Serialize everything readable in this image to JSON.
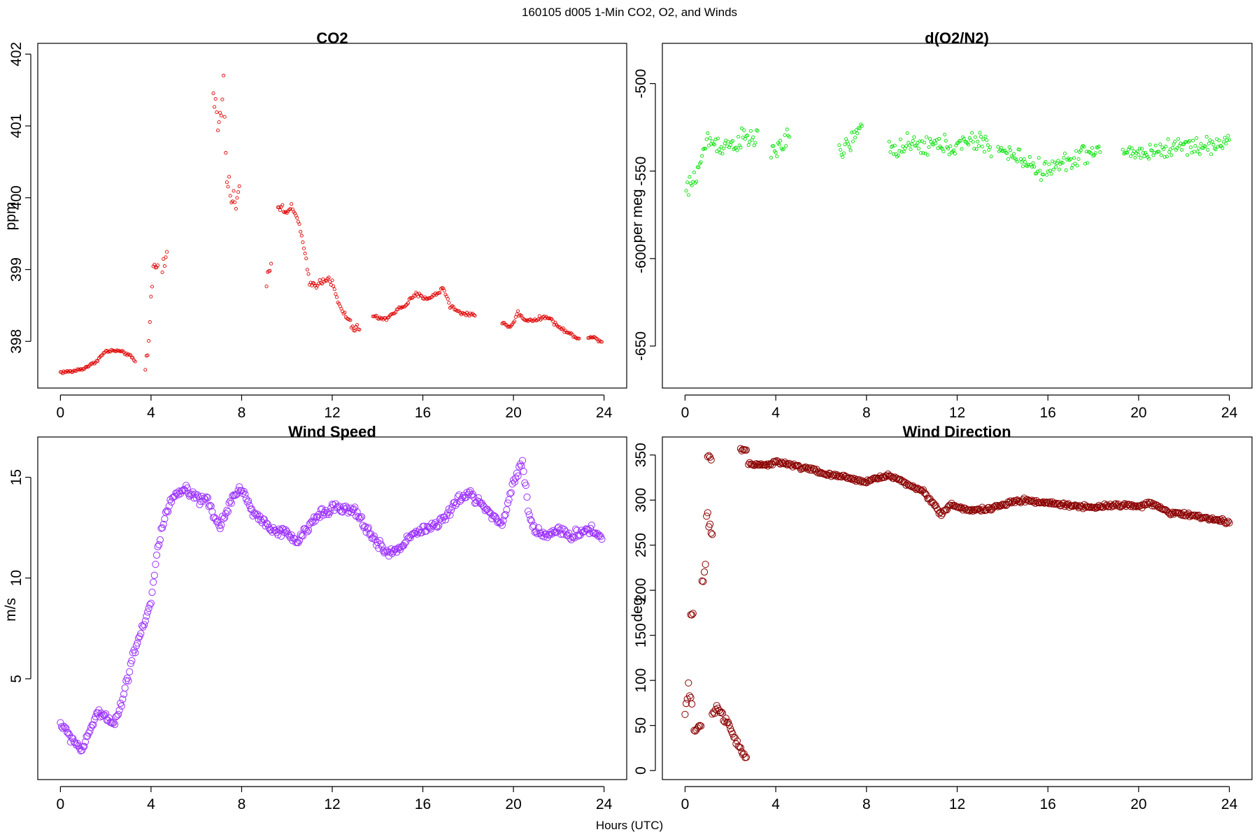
{
  "figure": {
    "suptitle": "160105   d005   1-Min CO2, O2, and Winds",
    "xlabel": "Hours (UTC)"
  },
  "chart_data": [
    {
      "type": "scatter",
      "title": "CO2",
      "xlabel": "",
      "ylabel": "ppm",
      "color": "#e00000",
      "marker_size": "small",
      "xlim": [
        -1,
        25
      ],
      "ylim": [
        397.35,
        402.15
      ],
      "xticks": [
        0,
        4,
        8,
        12,
        16,
        20,
        24
      ],
      "yticks": [
        398,
        399,
        400,
        401,
        402
      ],
      "segments": [
        {
          "x": [
            0,
            0.5,
            1.0,
            1.5,
            2.0,
            2.5,
            3.0,
            3.3
          ],
          "y": [
            397.57,
            397.58,
            397.62,
            397.7,
            397.86,
            397.87,
            397.82,
            397.72
          ],
          "jitter": 0.03
        },
        {
          "x": [
            3.75,
            3.9,
            4.0,
            4.1,
            4.3
          ],
          "y": [
            397.6,
            398.0,
            398.6,
            399.0,
            399.15
          ],
          "jitter": 0.15
        },
        {
          "x": [
            4.5,
            4.7
          ],
          "y": [
            399.0,
            399.2
          ],
          "jitter": 0.2
        },
        {
          "x": [
            6.75,
            7.0,
            7.2,
            7.4,
            7.6,
            7.9
          ],
          "y": [
            401.4,
            401.0,
            401.5,
            400.2,
            399.9,
            400.1
          ],
          "jitter": 0.35
        },
        {
          "x": [
            9.1,
            9.3
          ],
          "y": [
            398.9,
            399.1
          ],
          "jitter": 0.15
        },
        {
          "x": [
            9.6,
            9.9,
            10.2,
            10.5,
            10.8,
            11.0,
            11.4,
            11.8,
            12.0,
            12.3,
            12.7,
            13.0,
            13.2
          ],
          "y": [
            399.9,
            399.8,
            399.85,
            399.7,
            399.2,
            398.8,
            398.8,
            398.9,
            398.8,
            398.5,
            398.3,
            398.15,
            398.2
          ],
          "jitter": 0.08
        },
        {
          "x": [
            13.8,
            14.3,
            14.7,
            15.2,
            15.7,
            16.2,
            16.6,
            16.9,
            17.2,
            17.6,
            18.0,
            18.3
          ],
          "y": [
            398.35,
            398.3,
            398.4,
            398.5,
            398.65,
            398.6,
            398.65,
            398.75,
            398.5,
            398.4,
            398.38,
            398.38
          ],
          "jitter": 0.05
        },
        {
          "x": [
            19.5,
            19.9,
            20.2,
            20.5,
            21.0,
            21.5,
            22.0,
            22.5,
            22.9
          ],
          "y": [
            398.25,
            398.2,
            398.4,
            398.3,
            398.3,
            398.35,
            398.2,
            398.1,
            398.05
          ],
          "jitter": 0.04
        },
        {
          "x": [
            23.3,
            23.6,
            23.9
          ],
          "y": [
            398.05,
            398.05,
            398.0
          ],
          "jitter": 0.03
        }
      ]
    },
    {
      "type": "scatter",
      "title": "d(O2/N2)",
      "xlabel": "",
      "ylabel": "per meg",
      "color": "#00e000",
      "marker_size": "small",
      "xlim": [
        -1,
        25
      ],
      "ylim": [
        -674,
        -477
      ],
      "xticks": [
        0,
        4,
        8,
        12,
        16,
        20,
        24
      ],
      "yticks": [
        -650,
        -600,
        -550,
        -500
      ],
      "segments": [
        {
          "x": [
            0.05,
            0.3,
            0.6,
            0.8,
            1.0,
            1.5,
            2.0,
            2.5,
            3.0,
            3.2
          ],
          "y": [
            -562,
            -557,
            -548,
            -540,
            -532,
            -535,
            -535,
            -532,
            -532,
            -530
          ],
          "jitter": 9
        },
        {
          "x": [
            3.8,
            4.2,
            4.6
          ],
          "y": [
            -540,
            -535,
            -532
          ],
          "jitter": 9
        },
        {
          "x": [
            6.8,
            7.2,
            7.5,
            7.8
          ],
          "y": [
            -540,
            -535,
            -530,
            -525
          ],
          "jitter": 8
        },
        {
          "x": [
            9.0,
            10.0,
            11.0,
            12.0,
            12.8,
            13.5
          ],
          "y": [
            -537,
            -536,
            -535,
            -536,
            -533,
            -535
          ],
          "jitter": 9
        },
        {
          "x": [
            13.8,
            14.8,
            15.8,
            16.8,
            17.5,
            18.3
          ],
          "y": [
            -538,
            -543,
            -550,
            -545,
            -540,
            -540
          ],
          "jitter": 8
        },
        {
          "x": [
            19.3,
            20.0,
            21.0,
            22.0,
            23.0,
            24.0
          ],
          "y": [
            -538,
            -540,
            -538,
            -535,
            -536,
            -533
          ],
          "jitter": 8
        }
      ]
    },
    {
      "type": "scatter",
      "title": "Wind Speed",
      "xlabel": "",
      "ylabel": "m/s",
      "color": "#9b30ff",
      "marker_size": "large",
      "xlim": [
        -1,
        25
      ],
      "ylim": [
        0,
        17
      ],
      "xticks": [
        0,
        4,
        8,
        12,
        16,
        20,
        24
      ],
      "yticks": [
        5,
        10,
        15
      ],
      "segments": [
        {
          "x": [
            0,
            0.3,
            0.7,
            1.0,
            1.3,
            1.6,
            2.0,
            2.4,
            2.8,
            3.2,
            3.6,
            4.0,
            4.3,
            4.6,
            5.0,
            5.5,
            6.0,
            6.5,
            7.0,
            7.5,
            8.0,
            8.5,
            9.0,
            9.5,
            10.0,
            10.5,
            11.0,
            11.5,
            12.0,
            12.5,
            13.0,
            13.5,
            14.0,
            14.5,
            15.0,
            15.5,
            16.0,
            16.5,
            17.0,
            17.5,
            18.0,
            18.5,
            19.0,
            19.5,
            20.0,
            20.4,
            20.7,
            21.0,
            21.5,
            22.0,
            22.5,
            23.0,
            23.5,
            23.9
          ],
          "y": [
            2.8,
            2.3,
            1.8,
            1.4,
            2.5,
            3.2,
            3.2,
            2.8,
            4.2,
            6.2,
            7.5,
            8.8,
            11.5,
            13.0,
            14.0,
            14.4,
            13.9,
            13.8,
            12.5,
            13.8,
            14.5,
            13.2,
            12.8,
            12.3,
            12.2,
            11.8,
            12.6,
            13.3,
            13.5,
            13.4,
            13.3,
            12.5,
            11.7,
            11.2,
            11.5,
            12.2,
            12.4,
            12.6,
            13.0,
            13.8,
            14.2,
            13.8,
            13.2,
            12.6,
            14.8,
            15.8,
            13.0,
            12.3,
            12.2,
            12.3,
            12.1,
            12.3,
            12.4,
            12.0
          ],
          "jitter": 0.35
        }
      ]
    },
    {
      "type": "scatter",
      "title": "Wind Direction",
      "xlabel": "",
      "ylabel": "deg",
      "color": "#8b0000",
      "marker_size": "large",
      "xlim": [
        -1,
        25
      ],
      "ylim": [
        -10,
        370
      ],
      "xticks": [
        0,
        4,
        8,
        12,
        16,
        20,
        24
      ],
      "yticks": [
        0,
        50,
        100,
        150,
        200,
        250,
        300,
        350
      ],
      "segments": [
        {
          "x": [
            0,
            0.15,
            0.3
          ],
          "y": [
            62,
            90,
            70
          ],
          "jitter": 12
        },
        {
          "x": [
            0.25,
            0.35
          ],
          "y": [
            170,
            175
          ],
          "jitter": 4
        },
        {
          "x": [
            0.4,
            0.55,
            0.7
          ],
          "y": [
            45,
            48,
            50
          ],
          "jitter": 6
        },
        {
          "x": [
            0.75,
            0.9
          ],
          "y": [
            205,
            225
          ],
          "jitter": 10
        },
        {
          "x": [
            0.95,
            1.1,
            1.2
          ],
          "y": [
            280,
            270,
            255
          ],
          "jitter": 12
        },
        {
          "x": [
            1.0,
            1.15
          ],
          "y": [
            350,
            345
          ],
          "jitter": 5
        },
        {
          "x": [
            1.2,
            1.5,
            1.8,
            2.1,
            2.4,
            2.7
          ],
          "y": [
            65,
            70,
            55,
            40,
            25,
            12
          ],
          "jitter": 7
        },
        {
          "x": [
            2.45,
            2.7
          ],
          "y": [
            356,
            356
          ],
          "jitter": 2
        },
        {
          "x": [
            2.8,
            3.5,
            4.0,
            4.5,
            5.0,
            5.5,
            6.0,
            6.5,
            7.0,
            7.5,
            8.0,
            8.5,
            9.0,
            9.5,
            10.0,
            10.5,
            11.0,
            11.3,
            11.7,
            12.0,
            12.5,
            13.0,
            13.5,
            14.0,
            14.5,
            15.0,
            15.5,
            16.0,
            17.0,
            18.0,
            19.0,
            20.0,
            20.5,
            21.0,
            21.5,
            22.0,
            22.5,
            23.0,
            23.5,
            24.0
          ],
          "y": [
            340,
            338,
            343,
            340,
            337,
            335,
            330,
            327,
            326,
            323,
            320,
            325,
            327,
            322,
            315,
            310,
            295,
            283,
            295,
            293,
            288,
            290,
            290,
            295,
            298,
            300,
            298,
            297,
            294,
            292,
            295,
            293,
            297,
            290,
            285,
            285,
            282,
            280,
            278,
            275
          ],
          "jitter": 3
        }
      ]
    }
  ]
}
